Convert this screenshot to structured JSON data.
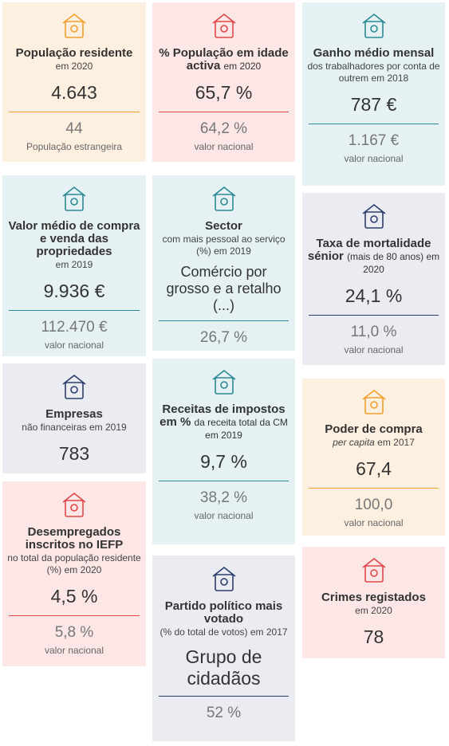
{
  "columns": [
    [
      {
        "title": "População residente",
        "subtitle": "em 2020",
        "value": "4.643",
        "comparison": "44",
        "comparison_label": "População estrangeira",
        "color": "#f0a030",
        "background": "#fdf0e0"
      },
      {
        "title": "Valor médio de compra e venda das propriedades",
        "subtitle": "em 2019",
        "value": "9.936 €",
        "comparison": "112.470 €",
        "comparison_label": "valor nacional",
        "color": "#2a8a96",
        "background": "#e6f1f3"
      },
      {
        "title": "Empresas",
        "subtitle": "não financeiras em 2019",
        "value": "783",
        "color": "#2c3e6e",
        "background": "#eaecf1"
      },
      {
        "title": "Desempregados inscritos no IEFP",
        "subtitle": "no total da população residente (%) em 2020",
        "value": "4,5 %",
        "comparison": "5,8 %",
        "comparison_label": "valor nacional",
        "color": "#e04848",
        "background": "#fce6e6"
      }
    ],
    [
      {
        "title": "% População em idade activa",
        "title_suffix": "em 2020",
        "value": "65,7 %",
        "comparison": "64,2 %",
        "comparison_label": "valor nacional",
        "color": "#e04848",
        "background": "#fce6e6"
      },
      {
        "title": "Sector",
        "subtitle": "com mais pessoal ao serviço (%) em 2019",
        "value": "Comércio por grosso e a retalho (...)",
        "comparison": "26,7 %",
        "color": "#2a8a96",
        "background": "#e6f1f3"
      },
      {
        "title": "Receitas de impostos em %",
        "title_suffix": "da receita total da CM em 2019",
        "value": "9,7 %",
        "comparison": "38,2 %",
        "comparison_label": "valor nacional",
        "color": "#2a8a96",
        "background": "#e6f1f3"
      },
      {
        "title": "Partido político mais votado",
        "subtitle": "(% do total de votos) em 2017",
        "value": "Grupo de cidadãos",
        "comparison": "52 %",
        "color": "#2c3e6e",
        "background": "#eaecf1"
      }
    ],
    [
      {
        "title": "Ganho médio mensal",
        "subtitle": "dos trabalhadores por conta de outrem em 2018",
        "value": "787 €",
        "comparison": "1.167 €",
        "comparison_label": "valor nacional",
        "color": "#2a8a96",
        "background": "#e6f1f3"
      },
      {
        "title": "Taxa de mortalidade sénior",
        "title_suffix": "(mais de 80 anos) em 2020",
        "value": "24,1 %",
        "comparison": "11,0 %",
        "comparison_label": "valor nacional",
        "color": "#2c3e6e",
        "background": "#eaecf1"
      },
      {
        "title": "Poder de compra",
        "subtitle_italic": "per capita",
        "subtitle": "em 2017",
        "value": "67,4",
        "comparison": "100,0",
        "comparison_label": "valor nacional",
        "color": "#f0a030",
        "background": "#fdf0e0"
      },
      {
        "title": "Crimes registados",
        "subtitle": "em 2020",
        "value": "78",
        "color": "#e04848",
        "background": "#fce6e6"
      }
    ]
  ]
}
